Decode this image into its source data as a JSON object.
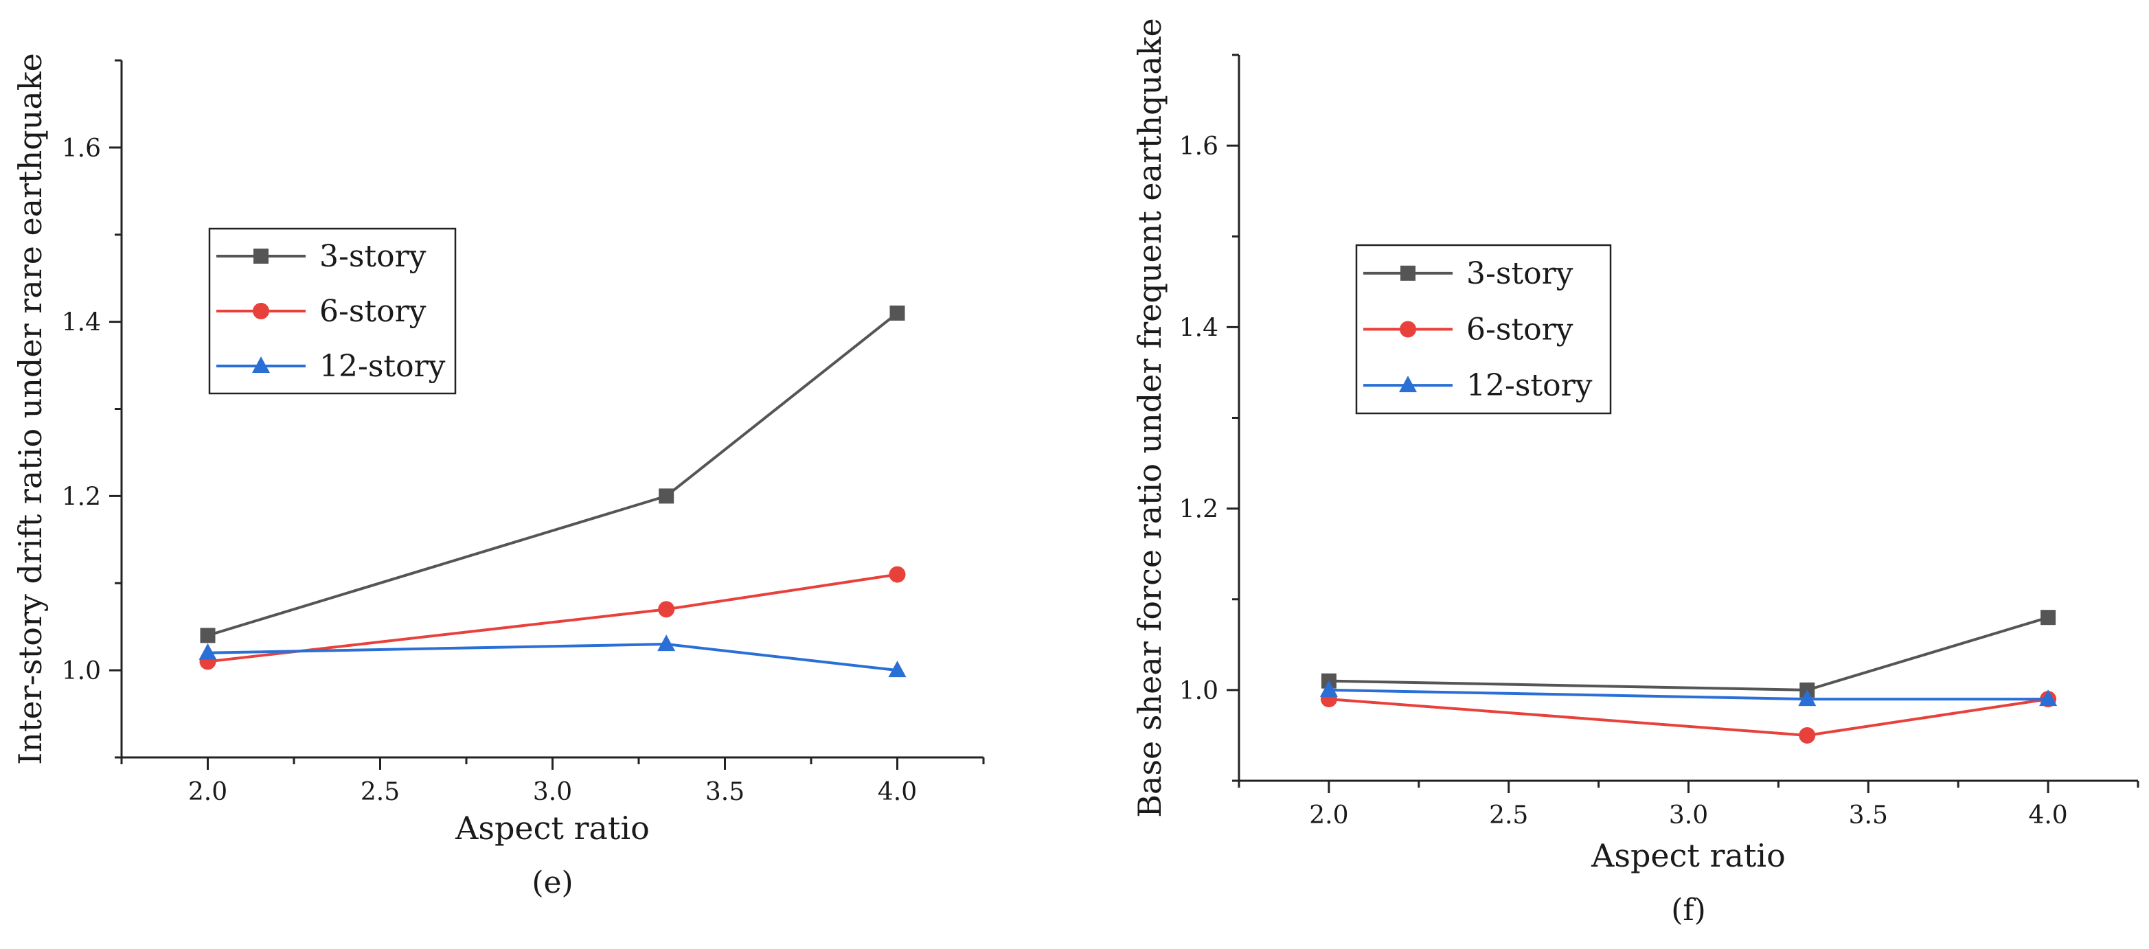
{
  "chart_data": [
    {
      "type": "line",
      "panel_label": "(e)",
      "xlabel": "Aspect ratio",
      "ylabel": "Inter-story drift ratio under rare earthquake",
      "xlim": [
        1.75,
        4.25
      ],
      "ylim": [
        0.9,
        1.7
      ],
      "xticks": [
        2.0,
        2.5,
        3.0,
        3.5,
        4.0
      ],
      "xtick_labels": [
        "2.0",
        "2.5",
        "3.0",
        "3.5",
        "4.0"
      ],
      "yticks": [
        1.0,
        1.2,
        1.4,
        1.6
      ],
      "ytick_labels": [
        "1.0",
        "1.2",
        "1.4",
        "1.6"
      ],
      "x": [
        2.0,
        3.33,
        4.0
      ],
      "legend_position": "upper-left",
      "series": [
        {
          "name": "3-story",
          "color": "#555555",
          "marker": "square",
          "values": [
            1.04,
            1.2,
            1.41
          ]
        },
        {
          "name": "6-story",
          "color": "#e8413c",
          "marker": "circle",
          "values": [
            1.01,
            1.07,
            1.11
          ]
        },
        {
          "name": "12-story",
          "color": "#2a6fd6",
          "marker": "triangle",
          "values": [
            1.02,
            1.03,
            1.0
          ]
        }
      ]
    },
    {
      "type": "line",
      "panel_label": "(f)",
      "xlabel": "Aspect ratio",
      "ylabel": "Base shear force ratio under frequent earthquake",
      "xlim": [
        1.75,
        4.25
      ],
      "ylim": [
        0.9,
        1.7
      ],
      "xticks": [
        2.0,
        2.5,
        3.0,
        3.5,
        4.0
      ],
      "xtick_labels": [
        "2.0",
        "2.5",
        "3.0",
        "3.5",
        "4.0"
      ],
      "yticks": [
        1.0,
        1.2,
        1.4,
        1.6
      ],
      "ytick_labels": [
        "1.0",
        "1.2",
        "1.4",
        "1.6"
      ],
      "x": [
        2.0,
        3.33,
        4.0
      ],
      "legend_position": "upper-left",
      "series": [
        {
          "name": "3-story",
          "color": "#555555",
          "marker": "square",
          "values": [
            1.01,
            1.0,
            1.08
          ]
        },
        {
          "name": "6-story",
          "color": "#e8413c",
          "marker": "circle",
          "values": [
            0.99,
            0.95,
            0.99
          ]
        },
        {
          "name": "12-story",
          "color": "#2a6fd6",
          "marker": "triangle",
          "values": [
            1.0,
            0.99,
            0.99
          ]
        }
      ]
    }
  ]
}
